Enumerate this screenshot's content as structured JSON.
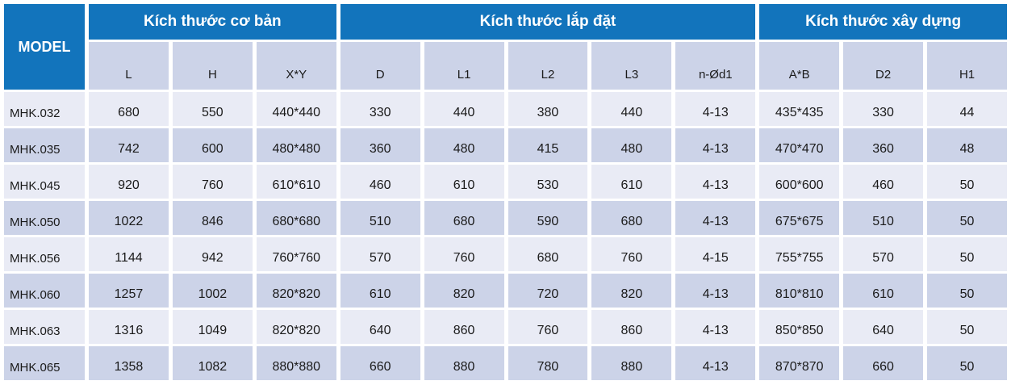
{
  "table": {
    "model_header": "MODEL",
    "groups": [
      {
        "label": "Kích thước cơ bản",
        "span": 3
      },
      {
        "label": "Kích thước lắp đặt",
        "span": 5
      },
      {
        "label": "Kích thước xây dựng",
        "span": 3
      }
    ],
    "columns": [
      "L",
      "H",
      "X*Y",
      "D",
      "L1",
      "L2",
      "L3",
      "n-Ød1",
      "A*B",
      "D2",
      "H1"
    ],
    "rows": [
      {
        "model": "MHK.032",
        "values": [
          "680",
          "550",
          "440*440",
          "330",
          "440",
          "380",
          "440",
          "4-13",
          "435*435",
          "330",
          "44"
        ]
      },
      {
        "model": "MHK.035",
        "values": [
          "742",
          "600",
          "480*480",
          "360",
          "480",
          "415",
          "480",
          "4-13",
          "470*470",
          "360",
          "48"
        ]
      },
      {
        "model": "MHK.045",
        "values": [
          "920",
          "760",
          "610*610",
          "460",
          "610",
          "530",
          "610",
          "4-13",
          "600*600",
          "460",
          "50"
        ]
      },
      {
        "model": "MHK.050",
        "values": [
          "1022",
          "846",
          "680*680",
          "510",
          "680",
          "590",
          "680",
          "4-13",
          "675*675",
          "510",
          "50"
        ]
      },
      {
        "model": "MHK.056",
        "values": [
          "1144",
          "942",
          "760*760",
          "570",
          "760",
          "680",
          "760",
          "4-15",
          "755*755",
          "570",
          "50"
        ]
      },
      {
        "model": "MHK.060",
        "values": [
          "1257",
          "1002",
          "820*820",
          "610",
          "820",
          "720",
          "820",
          "4-13",
          "810*810",
          "610",
          "50"
        ]
      },
      {
        "model": "MHK.063",
        "values": [
          "1316",
          "1049",
          "820*820",
          "640",
          "860",
          "760",
          "860",
          "4-13",
          "850*850",
          "640",
          "50"
        ]
      },
      {
        "model": "MHK.065",
        "values": [
          "1358",
          "1082",
          "880*880",
          "660",
          "880",
          "780",
          "880",
          "4-13",
          "870*870",
          "660",
          "50"
        ]
      }
    ],
    "colors": {
      "header_blue": "#1274BC",
      "row_light": "#E9EBF5",
      "row_dark": "#CCD3E8",
      "subheader_bg": "#CCD3E8",
      "text_dark": "#1A1A1A",
      "header_text": "#FFFFFF"
    }
  }
}
